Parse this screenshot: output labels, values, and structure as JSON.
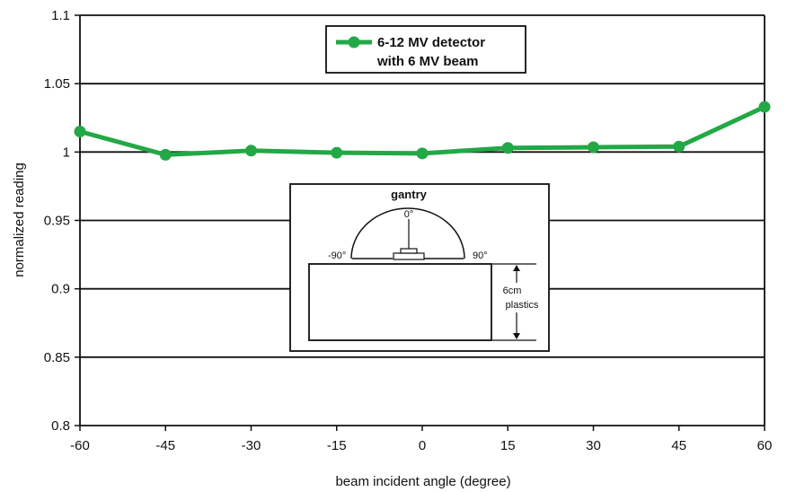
{
  "chart_data": {
    "type": "line",
    "x": [
      -60,
      -45,
      -30,
      -15,
      0,
      15,
      30,
      45,
      60
    ],
    "series": [
      {
        "name": "6-12 MV detector with 6 MV beam",
        "name_lines": [
          "6-12 MV detector",
          "with 6 MV beam"
        ],
        "values": [
          1.015,
          0.998,
          1.001,
          0.9995,
          0.999,
          1.003,
          1.0035,
          1.004,
          1.033
        ],
        "color": "#22a845"
      }
    ],
    "xlabel": "beam incident angle (degree)",
    "ylabel": "normalized reading",
    "xlim": [
      -60,
      60
    ],
    "ylim": [
      0.8,
      1.1
    ],
    "xticks": [
      -60,
      -45,
      -30,
      -15,
      0,
      15,
      30,
      45,
      60
    ],
    "xtick_labels": [
      "-60",
      "-45",
      "-30",
      "-15",
      "0",
      "15",
      "30",
      "45",
      "60"
    ],
    "yticks": [
      0.8,
      0.85,
      0.9,
      0.95,
      1.0,
      1.05,
      1.1
    ],
    "ytick_labels": [
      "0.8",
      "0.85",
      "0.9",
      "0.95",
      "1",
      "1.05",
      "1.1"
    ],
    "grid": "horizontal",
    "legend_position": "top-center"
  },
  "inset": {
    "title": "gantry",
    "angle_top": "0°",
    "angle_left": "-90°",
    "angle_right": "90°",
    "thickness_label_lines": [
      "6cm",
      "plastics"
    ]
  }
}
